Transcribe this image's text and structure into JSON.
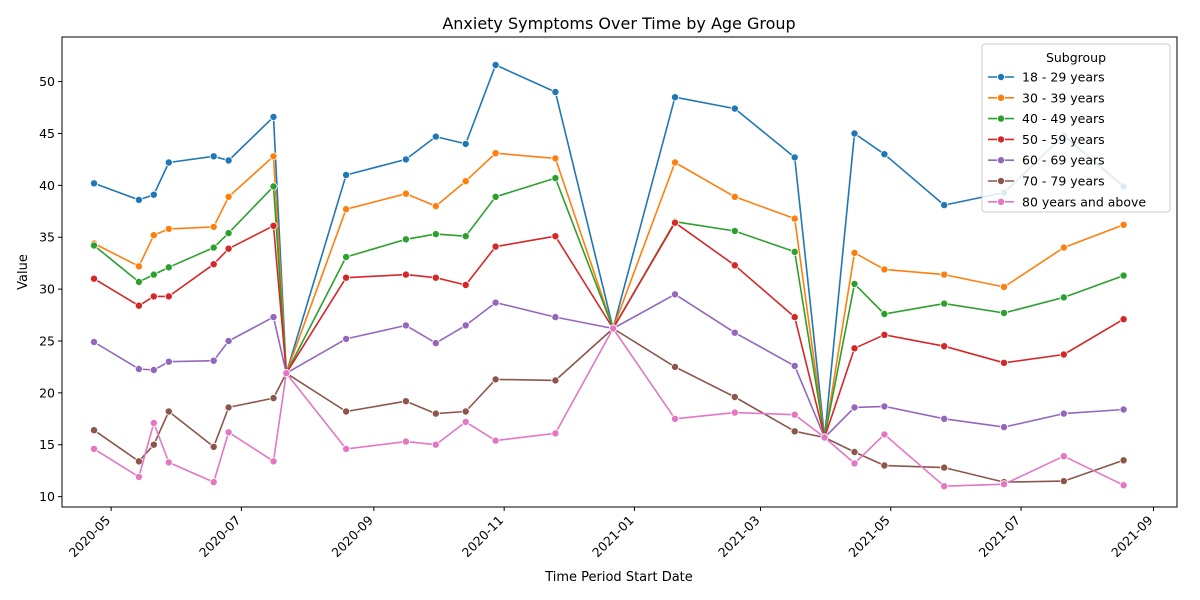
{
  "chart_data": {
    "type": "line",
    "title": "Anxiety Symptoms Over Time by Age Group",
    "xlabel": "Time Period Start Date",
    "ylabel": "Value",
    "xlim": [
      "2020-04-08",
      "2021-09-12"
    ],
    "ylim": [
      9,
      54.3
    ],
    "yticks": [
      10,
      15,
      20,
      25,
      30,
      35,
      40,
      45,
      50
    ],
    "xticks": [
      {
        "date": "2020-05-01",
        "label": "2020-05"
      },
      {
        "date": "2020-07-01",
        "label": "2020-07"
      },
      {
        "date": "2020-09-01",
        "label": "2020-09"
      },
      {
        "date": "2020-11-01",
        "label": "2020-11"
      },
      {
        "date": "2021-01-01",
        "label": "2021-01"
      },
      {
        "date": "2021-03-01",
        "label": "2021-03"
      },
      {
        "date": "2021-05-01",
        "label": "2021-05"
      },
      {
        "date": "2021-07-01",
        "label": "2021-07"
      },
      {
        "date": "2021-09-01",
        "label": "2021-09"
      }
    ],
    "grid": false,
    "legend": {
      "title": "Subgroup",
      "position": "top-right"
    },
    "x": [
      "2020-04-23",
      "2020-05-14",
      "2020-05-21",
      "2020-05-28",
      "2020-06-18",
      "2020-06-25",
      "2020-07-16",
      "2020-07-22",
      "2020-08-19",
      "2020-09-16",
      "2020-09-30",
      "2020-10-14",
      "2020-10-28",
      "2020-11-25",
      "2020-12-22",
      "2021-01-20",
      "2021-02-17",
      "2021-03-17",
      "2021-03-31",
      "2021-04-14",
      "2021-04-28",
      "2021-05-26",
      "2021-06-23",
      "2021-07-21",
      "2021-08-18"
    ],
    "series": [
      {
        "name": "18 - 29 years",
        "color": "#1f77b4",
        "values": [
          40.2,
          38.6,
          39.1,
          42.2,
          42.8,
          42.4,
          46.6,
          21.9,
          41.0,
          42.5,
          44.7,
          44.0,
          51.6,
          49.0,
          26.2,
          48.5,
          47.4,
          42.7,
          15.7,
          45.0,
          43.0,
          38.1,
          39.3,
          44.8,
          39.9
        ]
      },
      {
        "name": "30 - 39 years",
        "color": "#ff7f0e",
        "values": [
          34.4,
          32.2,
          35.2,
          35.8,
          36.0,
          38.9,
          42.8,
          21.9,
          37.7,
          39.2,
          38.0,
          40.4,
          43.1,
          42.6,
          26.2,
          42.2,
          38.9,
          36.8,
          15.7,
          33.5,
          31.9,
          31.4,
          30.2,
          34.0,
          36.2
        ]
      },
      {
        "name": "40 - 49 years",
        "color": "#2ca02c",
        "values": [
          34.2,
          30.7,
          31.4,
          32.1,
          34.0,
          35.4,
          39.9,
          21.9,
          33.1,
          34.8,
          35.3,
          35.1,
          38.9,
          40.7,
          26.2,
          36.5,
          35.6,
          33.6,
          15.7,
          30.5,
          27.6,
          28.6,
          27.7,
          29.2,
          31.3
        ]
      },
      {
        "name": "50 - 59 years",
        "color": "#d62728",
        "values": [
          31.0,
          28.4,
          29.3,
          29.3,
          32.4,
          33.9,
          36.1,
          21.9,
          31.1,
          31.4,
          31.1,
          30.4,
          34.1,
          35.1,
          26.2,
          36.4,
          32.3,
          27.3,
          15.7,
          24.3,
          25.6,
          24.5,
          22.9,
          23.7,
          27.1
        ]
      },
      {
        "name": "60 - 69 years",
        "color": "#9467bd",
        "values": [
          24.9,
          22.3,
          22.2,
          23.0,
          23.1,
          25.0,
          27.3,
          21.9,
          25.2,
          26.5,
          24.8,
          26.5,
          28.7,
          27.3,
          26.2,
          29.5,
          25.8,
          22.6,
          15.7,
          18.6,
          18.7,
          17.5,
          16.7,
          18.0,
          18.4
        ]
      },
      {
        "name": "70 - 79 years",
        "color": "#8c564b",
        "values": [
          16.4,
          13.4,
          15.0,
          18.2,
          14.8,
          18.6,
          19.5,
          21.9,
          18.2,
          19.2,
          18.0,
          18.2,
          21.3,
          21.2,
          26.2,
          22.5,
          19.6,
          16.3,
          15.7,
          14.3,
          13.0,
          12.8,
          11.4,
          11.5,
          13.5
        ]
      },
      {
        "name": "80 years and above",
        "color": "#e377c2",
        "values": [
          14.6,
          11.9,
          17.1,
          13.3,
          11.4,
          16.2,
          13.4,
          21.9,
          14.6,
          15.3,
          15.0,
          17.2,
          15.4,
          16.1,
          26.2,
          17.5,
          18.1,
          17.9,
          15.7,
          13.2,
          16.0,
          11.0,
          11.2,
          13.9,
          11.1
        ]
      }
    ]
  }
}
